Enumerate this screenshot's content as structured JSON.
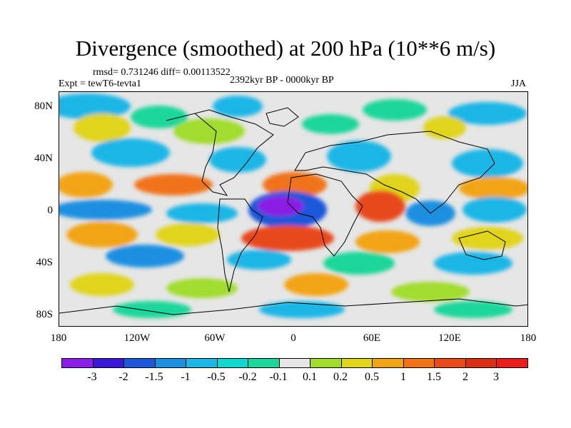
{
  "title": "Divergence (smoothed) at 200 hPa (10**6 m/s)",
  "stats": "rmsd= 0.731246  diff= 0.00113522",
  "experiment": "Expt = tewT6-tevta1",
  "period": "2392kyr BP - 0000kyr BP",
  "season": "JJA",
  "lat_labels": [
    "80N",
    "40N",
    "0",
    "40S",
    "80S"
  ],
  "lon_labels": [
    "180",
    "120W",
    "60W",
    "0",
    "60E",
    "120E",
    "180"
  ],
  "colorbar": {
    "labels": [
      "-3",
      "-2",
      "-1.5",
      "-1",
      "-0.5",
      "-0.2",
      "-0.1",
      "0.1",
      "0.2",
      "0.5",
      "1",
      "1.5",
      "2",
      "3"
    ],
    "colors": [
      "#8a1fe6",
      "#3b17d6",
      "#1f57d9",
      "#1f8fe0",
      "#1fb6e6",
      "#10d7d0",
      "#1fd69a",
      "#e6e6e6",
      "#a2dc2e",
      "#e0d41f",
      "#f2a418",
      "#f0731a",
      "#e84a1b",
      "#d93015",
      "#e61f1a"
    ]
  },
  "palette": {
    "background": "#e6e6e6",
    "green": "#1fd69a",
    "cyan": "#10d7d0",
    "lightblue": "#1fb6e6",
    "blue": "#1f8fe0",
    "darkblue": "#1f57d9",
    "purple": "#3b17d6",
    "violet": "#8a1fe6",
    "lime": "#a2dc2e",
    "yellow": "#e0d41f",
    "orange": "#f2a418",
    "darkorange": "#f0731a",
    "red": "#e84a1b"
  }
}
